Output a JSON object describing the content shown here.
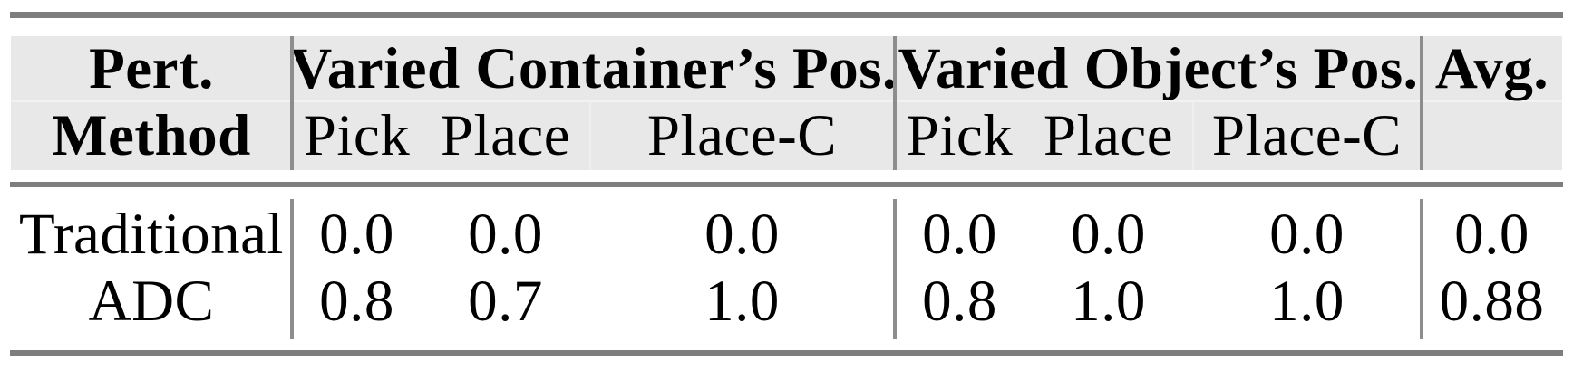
{
  "table": {
    "header": {
      "method_col": {
        "line1": "Pert.",
        "line2": "Method"
      },
      "group1": {
        "label": "Varied Container’s Pos.",
        "sub": [
          "Pick",
          "Place",
          "Place-C"
        ]
      },
      "group2": {
        "label": "Varied Object’s Pos.",
        "sub": [
          "Pick",
          "Place",
          "Place-C"
        ]
      },
      "avg_label": "Avg."
    },
    "rows": [
      {
        "method": "Traditional",
        "g1": [
          "0.0",
          "0.0",
          "0.0"
        ],
        "g2": [
          "0.0",
          "0.0",
          "0.0"
        ],
        "avg": "0.0"
      },
      {
        "method": "ADC",
        "g1": [
          "0.8",
          "0.7",
          "1.0"
        ],
        "g2": [
          "0.8",
          "1.0",
          "1.0"
        ],
        "avg": "0.88"
      }
    ]
  },
  "chart_data": {
    "type": "table",
    "title": "",
    "column_groups": [
      "Pert. Method",
      "Varied Container’s Pos.",
      "Varied Object’s Pos.",
      "Avg."
    ],
    "columns": [
      "Pert. Method",
      "Container Pick",
      "Container Place",
      "Container Place-C",
      "Object Pick",
      "Object Place",
      "Object Place-C",
      "Avg."
    ],
    "rows": [
      [
        "Traditional",
        0.0,
        0.0,
        0.0,
        0.0,
        0.0,
        0.0,
        0.0
      ],
      [
        "ADC",
        0.8,
        0.7,
        1.0,
        0.8,
        1.0,
        1.0,
        0.88
      ]
    ]
  },
  "colors": {
    "header_bg": "#e8e8e8",
    "horizontal_rule": "#7e7e7e",
    "vertical_rule": "#8d8d8d",
    "text": "#000000",
    "page_bg": "#ffffff"
  }
}
